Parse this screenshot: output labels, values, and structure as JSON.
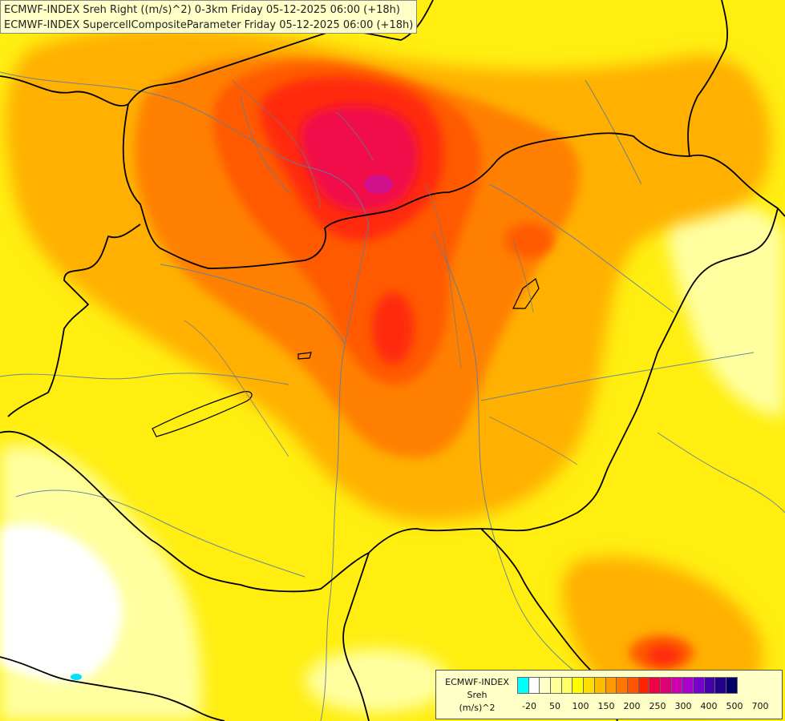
{
  "titles": {
    "line1": "ECMWF-INDEX Sreh Right ((m/s)^2) 0-3km Friday 05-12-2025 06:00 (+18h)",
    "line2": "ECMWF-INDEX SupercellCompositeParameter Friday 05-12-2025 06:00 (+18h)"
  },
  "legend": {
    "title_line1": "ECMWF-INDEX",
    "title_line2": "Sreh",
    "title_line3": "(m/s)^2",
    "colors": [
      "#00ffff",
      "#ffffff",
      "#ffffc8",
      "#ffff99",
      "#ffff66",
      "#ffff00",
      "#ffdd00",
      "#ffbb00",
      "#ff9900",
      "#ff7700",
      "#ff5500",
      "#ff2200",
      "#ee0044",
      "#dd0077",
      "#cc00aa",
      "#aa00cc",
      "#7700cc",
      "#4400aa",
      "#220088",
      "#000066"
    ],
    "ticks": [
      "-20",
      "50",
      "100",
      "150",
      "200",
      "250",
      "300",
      "400",
      "500",
      "700"
    ]
  },
  "field_colors": {
    "base": "#ffee10",
    "light": "#ffffa0",
    "orange": "#ffb000",
    "dark_orange": "#ff8000",
    "red_orange": "#ff5a00",
    "red": "#ff2a10",
    "crimson": "#f0104a",
    "magenta": "#d0108a",
    "white": "#ffffff",
    "cyan": "#00e0ff"
  }
}
